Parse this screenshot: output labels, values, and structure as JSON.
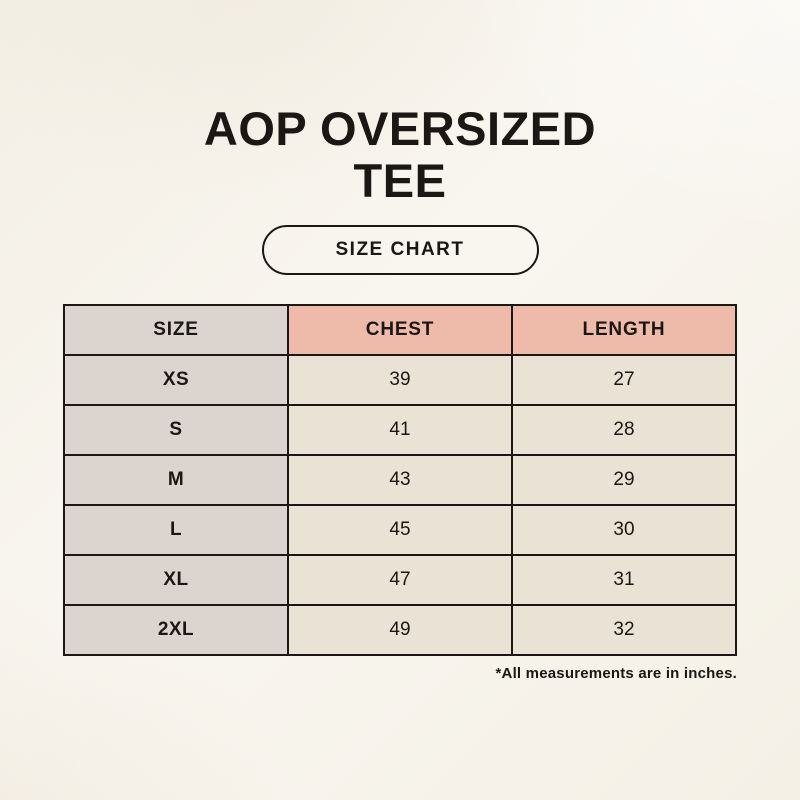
{
  "page": {
    "title_line1": "AOP OVERSIZED",
    "title_line2": "TEE",
    "badge_label": "SIZE CHART",
    "footnote": "*All measurements are in inches."
  },
  "colors": {
    "bg": "#f6f2ea",
    "header-pink": "#eebbaa",
    "size-col-bg": "#dcd5cf",
    "cell-bg": "#e9e2d5",
    "border": "#1a1714",
    "text": "#1a1714"
  },
  "chart_data": {
    "type": "table",
    "title": "AOP OVERSIZED TEE",
    "units": "inches",
    "columns": [
      "SIZE",
      "CHEST",
      "LENGTH"
    ],
    "rows": [
      [
        "XS",
        "39",
        "27"
      ],
      [
        "S",
        "41",
        "28"
      ],
      [
        "M",
        "43",
        "29"
      ],
      [
        "L",
        "45",
        "30"
      ],
      [
        "XL",
        "47",
        "31"
      ],
      [
        "2XL",
        "49",
        "32"
      ]
    ]
  }
}
